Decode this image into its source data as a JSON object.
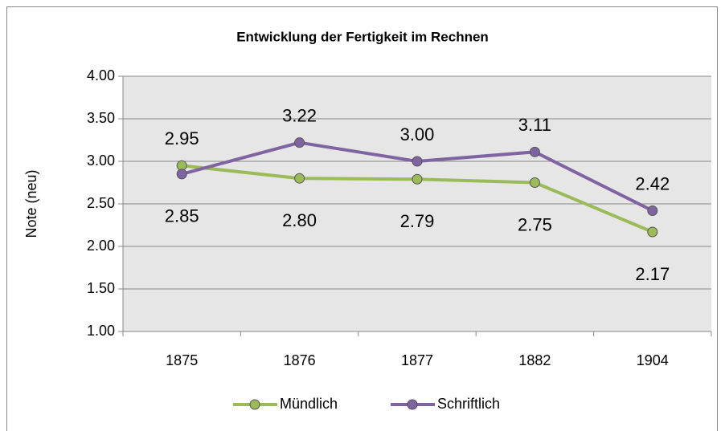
{
  "chart_data": {
    "type": "line",
    "title": "Entwicklung der Fertigkeit im Rechnen",
    "ylabel": "Note (neu)",
    "categories": [
      "1875",
      "1876",
      "1877",
      "1882",
      "1904"
    ],
    "series": [
      {
        "name": "Mündlich",
        "color": "#9bbb59",
        "values": [
          2.95,
          2.8,
          2.79,
          2.75,
          2.17
        ],
        "value_labels": [
          "2.95",
          "2.80",
          "2.79",
          "2.75",
          "2.17"
        ]
      },
      {
        "name": "Schriftlich",
        "color": "#8064a2",
        "values": [
          2.85,
          3.22,
          3.0,
          3.11,
          2.42
        ],
        "value_labels": [
          "2.85",
          "3.22",
          "3.00",
          "3.11",
          "2.42"
        ]
      }
    ],
    "ylim": [
      1,
      4
    ],
    "yticks": [
      {
        "value": 1,
        "label": "1.00"
      },
      {
        "value": 1.5,
        "label": "1.50"
      },
      {
        "value": 2,
        "label": "2.00"
      },
      {
        "value": 2.5,
        "label": "2.50"
      },
      {
        "value": 3,
        "label": "3.00"
      },
      {
        "value": 3.5,
        "label": "3.50"
      },
      {
        "value": 4,
        "label": "4.00"
      }
    ],
    "grid": true,
    "legend": "bottom"
  }
}
